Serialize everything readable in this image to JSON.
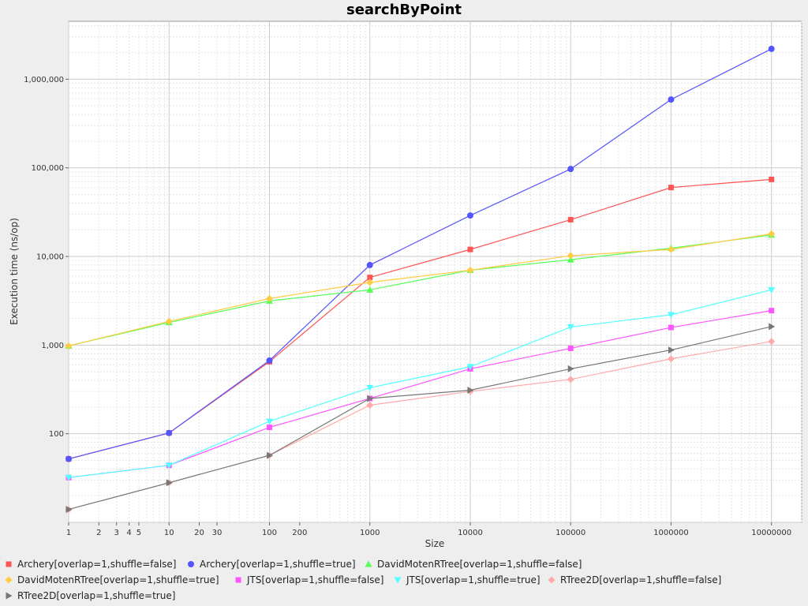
{
  "chart_data": {
    "type": "line",
    "title": "searchByPoint",
    "xlabel": "Size",
    "ylabel": "Execution time (ns/op)",
    "x_scale": "log",
    "y_scale": "log",
    "xlim": [
      1,
      20000000
    ],
    "ylim": [
      10,
      4500000
    ],
    "grid": true,
    "legend_position": "bottom",
    "x_ticks": [
      "1",
      "2",
      "3",
      "4",
      "5",
      "10",
      "20",
      "30",
      "100",
      "200",
      "1000",
      "10000",
      "100000",
      "1000000",
      "10000000"
    ],
    "y_ticks": [
      "100",
      "1,000",
      "10,000",
      "100,000",
      "1,000,000"
    ],
    "x": [
      1,
      10,
      100,
      1000,
      10000,
      100000,
      1000000,
      10000000
    ],
    "series": [
      {
        "name": "Archery[overlap=1,shuffle=false]",
        "color": "#ff5555",
        "marker": "square",
        "values": [
          52,
          102,
          650,
          5800,
          12000,
          26000,
          60000,
          74000
        ]
      },
      {
        "name": "Archery[overlap=1,shuffle=true]",
        "color": "#5555ff",
        "marker": "circle",
        "values": [
          52,
          102,
          670,
          8000,
          29000,
          97000,
          590000,
          2200000
        ]
      },
      {
        "name": "DavidMotenRTree[overlap=1,shuffle=false]",
        "color": "#55ff55",
        "marker": "triangle-up",
        "values": [
          980,
          1800,
          3150,
          4200,
          7000,
          9200,
          12400,
          17500
        ]
      },
      {
        "name": "DavidMotenRTree[overlap=1,shuffle=true]",
        "color": "#ffcc44",
        "marker": "diamond",
        "values": [
          980,
          1850,
          3350,
          5100,
          7000,
          10200,
          12000,
          18000
        ]
      },
      {
        "name": "JTS[overlap=1,shuffle=false]",
        "color": "#ff55ff",
        "marker": "square",
        "values": [
          32,
          44,
          118,
          250,
          540,
          920,
          1580,
          2450
        ]
      },
      {
        "name": "JTS[overlap=1,shuffle=true]",
        "color": "#55ffff",
        "marker": "triangle-down",
        "values": [
          32,
          44,
          138,
          330,
          570,
          1600,
          2200,
          4200
        ]
      },
      {
        "name": "RTree2D[overlap=1,shuffle=false]",
        "color": "#ffaaaa",
        "marker": "diamond",
        "values": [
          14,
          28,
          57,
          210,
          300,
          410,
          700,
          1100
        ]
      },
      {
        "name": "RTree2D[overlap=1,shuffle=true]",
        "color": "#777777",
        "marker": "triangle-right",
        "values": [
          14,
          28,
          57,
          250,
          310,
          540,
          880,
          1620
        ]
      }
    ]
  }
}
